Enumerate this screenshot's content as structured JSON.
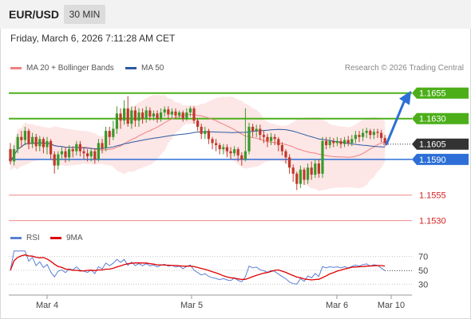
{
  "header": {
    "pair": "EUR/USD",
    "timeframe": "30 MIN"
  },
  "timestamp": "Friday, March 6, 2026 7:11:28 AM CET",
  "legend": {
    "ma20_label": "MA 20 + Bollinger Bands",
    "ma20_color": "#f08080",
    "ma50_label": "MA 50",
    "ma50_color": "#2c5aa0"
  },
  "credit": "Research © 2026 Trading Central",
  "rsi_legend": {
    "rsi_label": "RSI",
    "rsi_color": "#5b7fd6",
    "ma_label": "9MA",
    "ma_color": "#e00000"
  },
  "chart_data": {
    "type": "candlestick",
    "price_ylim": [
      1.1518,
      1.1672
    ],
    "x_ticks": [
      "Mar 4",
      "Mar 5",
      "Mar 6",
      "Mar 10"
    ],
    "levels": [
      {
        "label": "1.1655",
        "value": 1.1655,
        "kind": "resistance-tag"
      },
      {
        "label": "1.1630",
        "value": 1.163,
        "kind": "resistance-tag"
      },
      {
        "label": "1.1605",
        "value": 1.1605,
        "kind": "last-price"
      },
      {
        "label": "1.1590",
        "value": 1.159,
        "kind": "pivot"
      },
      {
        "label": "1.1555",
        "value": 1.1555,
        "kind": "support"
      },
      {
        "label": "1.1530",
        "value": 1.153,
        "kind": "support"
      }
    ],
    "candles": [
      [
        1.16,
        1.1588,
        1.1606,
        1.1585
      ],
      [
        1.1588,
        1.16,
        1.1604,
        1.1584
      ],
      [
        1.16,
        1.1612,
        1.1615,
        1.1596
      ],
      [
        1.1612,
        1.1609,
        1.1618,
        1.1602
      ],
      [
        1.1609,
        1.1618,
        1.1622,
        1.1604
      ],
      [
        1.1618,
        1.1605,
        1.162,
        1.16
      ],
      [
        1.1605,
        1.1612,
        1.1616,
        1.1601
      ],
      [
        1.1612,
        1.1603,
        1.1615,
        1.1598
      ],
      [
        1.1603,
        1.161,
        1.1613,
        1.1598
      ],
      [
        1.161,
        1.1602,
        1.1612,
        1.1596
      ],
      [
        1.1602,
        1.1608,
        1.1612,
        1.1595
      ],
      [
        1.1608,
        1.1595,
        1.161,
        1.159
      ],
      [
        1.1595,
        1.1584,
        1.1598,
        1.1576
      ],
      [
        1.1584,
        1.1595,
        1.1598,
        1.158
      ],
      [
        1.1595,
        1.1598,
        1.1602,
        1.159
      ],
      [
        1.1598,
        1.1592,
        1.1602,
        1.1587
      ],
      [
        1.1592,
        1.16,
        1.1604,
        1.1588
      ],
      [
        1.16,
        1.1598,
        1.1603,
        1.1592
      ],
      [
        1.1598,
        1.1605,
        1.1608,
        1.1594
      ],
      [
        1.1605,
        1.1598,
        1.1608,
        1.1593
      ],
      [
        1.1598,
        1.1596,
        1.1601,
        1.159
      ],
      [
        1.1596,
        1.1593,
        1.16,
        1.1588
      ],
      [
        1.1593,
        1.1598,
        1.1601,
        1.1588
      ],
      [
        1.1598,
        1.159,
        1.1601,
        1.1586
      ],
      [
        1.159,
        1.1606,
        1.161,
        1.1588
      ],
      [
        1.1606,
        1.1601,
        1.161,
        1.1596
      ],
      [
        1.1601,
        1.1618,
        1.1622,
        1.1598
      ],
      [
        1.1618,
        1.1612,
        1.1622,
        1.1604
      ],
      [
        1.1612,
        1.162,
        1.1628,
        1.1609
      ],
      [
        1.162,
        1.1635,
        1.1642,
        1.1615
      ],
      [
        1.1635,
        1.1628,
        1.164,
        1.162
      ],
      [
        1.1628,
        1.164,
        1.1648,
        1.1624
      ],
      [
        1.164,
        1.1625,
        1.1652,
        1.1622
      ],
      [
        1.1625,
        1.1638,
        1.1642,
        1.162
      ],
      [
        1.1638,
        1.1628,
        1.1642,
        1.1622
      ],
      [
        1.1628,
        1.1636,
        1.164,
        1.1622
      ],
      [
        1.1636,
        1.163,
        1.164,
        1.1625
      ],
      [
        1.163,
        1.1638,
        1.1642,
        1.1626
      ],
      [
        1.1638,
        1.1632,
        1.1641,
        1.1628
      ],
      [
        1.1632,
        1.1635,
        1.1638,
        1.1628
      ],
      [
        1.1635,
        1.163,
        1.1638,
        1.1626
      ],
      [
        1.163,
        1.1636,
        1.164,
        1.1627
      ],
      [
        1.1636,
        1.1639,
        1.1642,
        1.1632
      ],
      [
        1.1639,
        1.1634,
        1.1642,
        1.163
      ],
      [
        1.1634,
        1.1637,
        1.164,
        1.163
      ],
      [
        1.1637,
        1.1633,
        1.164,
        1.163
      ],
      [
        1.1633,
        1.1636,
        1.1638,
        1.163
      ],
      [
        1.1636,
        1.163,
        1.1638,
        1.1627
      ],
      [
        1.163,
        1.1636,
        1.164,
        1.1628
      ],
      [
        1.1636,
        1.164,
        1.1642,
        1.1632
      ],
      [
        1.164,
        1.1628,
        1.1642,
        1.1625
      ],
      [
        1.1628,
        1.1622,
        1.163,
        1.1618
      ],
      [
        1.1622,
        1.1615,
        1.1625,
        1.161
      ],
      [
        1.1615,
        1.1618,
        1.1622,
        1.161
      ],
      [
        1.1618,
        1.161,
        1.162,
        1.1605
      ],
      [
        1.161,
        1.1606,
        1.1612,
        1.16
      ],
      [
        1.1606,
        1.1604,
        1.161,
        1.1598
      ],
      [
        1.1604,
        1.16,
        1.1606,
        1.1595
      ],
      [
        1.16,
        1.1602,
        1.1605,
        1.1595
      ],
      [
        1.1602,
        1.1598,
        1.1605,
        1.1592
      ],
      [
        1.1598,
        1.1596,
        1.1602,
        1.159
      ],
      [
        1.1596,
        1.16,
        1.1603,
        1.1593
      ],
      [
        1.16,
        1.1594,
        1.1602,
        1.1588
      ],
      [
        1.1594,
        1.159,
        1.1597,
        1.1584
      ],
      [
        1.159,
        1.1598,
        1.164,
        1.1588
      ],
      [
        1.1598,
        1.1622,
        1.1626,
        1.1595
      ],
      [
        1.1622,
        1.1618,
        1.1625,
        1.1612
      ],
      [
        1.1618,
        1.162,
        1.1624,
        1.1612
      ],
      [
        1.162,
        1.1614,
        1.1624,
        1.1609
      ],
      [
        1.1614,
        1.1612,
        1.1618,
        1.1606
      ],
      [
        1.1612,
        1.1608,
        1.1615,
        1.1602
      ],
      [
        1.1608,
        1.1612,
        1.1616,
        1.1604
      ],
      [
        1.1612,
        1.161,
        1.1615,
        1.1604
      ],
      [
        1.161,
        1.1604,
        1.1612,
        1.1598
      ],
      [
        1.1604,
        1.1598,
        1.1607,
        1.1594
      ],
      [
        1.1598,
        1.1592,
        1.16,
        1.1586
      ],
      [
        1.1592,
        1.1582,
        1.1595,
        1.1576
      ],
      [
        1.1582,
        1.1576,
        1.1585,
        1.1568
      ],
      [
        1.1576,
        1.1566,
        1.1578,
        1.156
      ],
      [
        1.1566,
        1.158,
        1.1584,
        1.1562
      ],
      [
        1.158,
        1.157,
        1.1582,
        1.1565
      ],
      [
        1.157,
        1.1582,
        1.1586,
        1.1566
      ],
      [
        1.1582,
        1.1575,
        1.1588,
        1.157
      ],
      [
        1.1575,
        1.1586,
        1.159,
        1.1572
      ],
      [
        1.1586,
        1.1576,
        1.159,
        1.1572
      ],
      [
        1.1576,
        1.1608,
        1.1612,
        1.1572
      ],
      [
        1.1608,
        1.1604,
        1.1612,
        1.16
      ],
      [
        1.1604,
        1.1608,
        1.1612,
        1.1601
      ],
      [
        1.1608,
        1.1606,
        1.1611,
        1.1602
      ],
      [
        1.1606,
        1.1608,
        1.1612,
        1.1603
      ],
      [
        1.1608,
        1.1605,
        1.1611,
        1.1601
      ],
      [
        1.1605,
        1.1609,
        1.1612,
        1.1602
      ],
      [
        1.1609,
        1.1606,
        1.1613,
        1.1603
      ],
      [
        1.1606,
        1.161,
        1.1614,
        1.1603
      ],
      [
        1.161,
        1.1614,
        1.1618,
        1.1606
      ],
      [
        1.1614,
        1.1612,
        1.1618,
        1.1607
      ],
      [
        1.1612,
        1.1616,
        1.162,
        1.1608
      ],
      [
        1.1616,
        1.1618,
        1.1621,
        1.1611
      ],
      [
        1.1618,
        1.1614,
        1.162,
        1.161
      ],
      [
        1.1614,
        1.1617,
        1.162,
        1.161
      ],
      [
        1.1617,
        1.1616,
        1.162,
        1.1611
      ],
      [
        1.1616,
        1.1611,
        1.1619,
        1.1607
      ],
      [
        1.1611,
        1.1606,
        1.1614,
        1.1603
      ]
    ],
    "rsi_ylim": [
      20,
      80
    ],
    "rsi_ticks": [
      "70",
      "50",
      "30"
    ]
  }
}
